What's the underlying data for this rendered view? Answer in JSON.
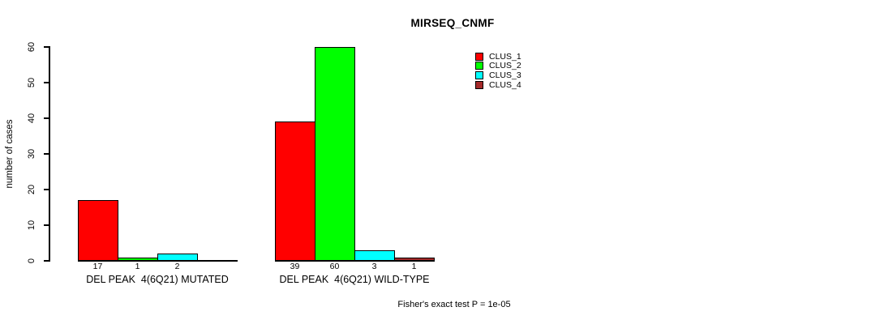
{
  "chart_data": {
    "type": "bar",
    "title": "MIRSEQ_CNMF",
    "ylabel": "number of cases",
    "xlabel": "",
    "ylim": [
      0,
      60
    ],
    "yticks": [
      0,
      10,
      20,
      30,
      40,
      50,
      60
    ],
    "grid": false,
    "legend_position": "top-right-inside",
    "categories": [
      "DEL PEAK  4(6Q21) MUTATED",
      "DEL PEAK  4(6Q21) WILD-TYPE"
    ],
    "series": [
      {
        "name": "CLUS_1",
        "color": "#ff0000",
        "values": [
          17,
          39
        ]
      },
      {
        "name": "CLUS_2",
        "color": "#00ff00",
        "values": [
          1,
          60
        ]
      },
      {
        "name": "CLUS_3",
        "color": "#00ffff",
        "values": [
          2,
          3
        ]
      },
      {
        "name": "CLUS_4",
        "color": "#a52a2a",
        "values": [
          0,
          1
        ]
      }
    ],
    "bar_value_labels": [
      [
        "17",
        "1",
        "2",
        ""
      ],
      [
        "39",
        "60",
        "3",
        "1"
      ]
    ],
    "footnote": "Fisher's exact test P = 1e-05",
    "axis_color": "#000000",
    "background_color": "#ffffff"
  }
}
